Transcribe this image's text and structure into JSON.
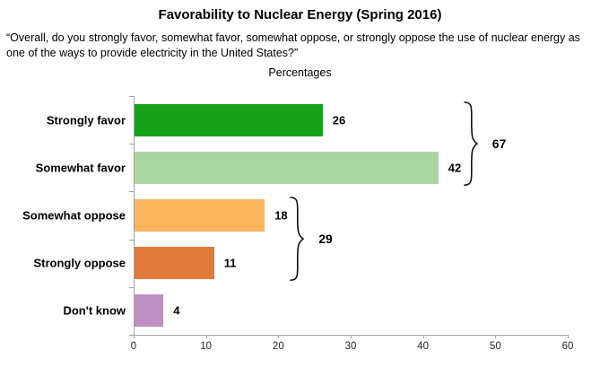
{
  "chart_data": {
    "type": "bar",
    "orientation": "horizontal",
    "title": "Favorability to Nuclear Energy (Spring 2016)",
    "subtitle": "“Overall, do you strongly favor, somewhat favor, somewhat oppose, or strongly oppose the use of nuclear energy as one of the ways to provide electricity in the United States?”",
    "units_label": "Percentages",
    "categories": [
      "Strongly favor",
      "Somewhat favor",
      "Somewhat oppose",
      "Strongly oppose",
      "Don't know"
    ],
    "values": [
      26,
      42,
      18,
      11,
      4
    ],
    "data_labels": [
      "26",
      "42",
      "18",
      "11",
      "4"
    ],
    "bar_colors": [
      "#16a11a",
      "#a9d7a0",
      "#f9b55d",
      "#e07b3a",
      "#c08fc2"
    ],
    "xlim": [
      0,
      60
    ],
    "x_ticks": [
      "0",
      "10",
      "20",
      "30",
      "40",
      "50",
      "60"
    ],
    "grid": false,
    "legend": "none",
    "axis_color": "#a3a3a3",
    "group_brackets": [
      {
        "total": "67",
        "from_category": "Strongly favor",
        "to_category": "Somewhat favor"
      },
      {
        "total": "29",
        "from_category": "Somewhat oppose",
        "to_category": "Strongly oppose"
      }
    ]
  }
}
